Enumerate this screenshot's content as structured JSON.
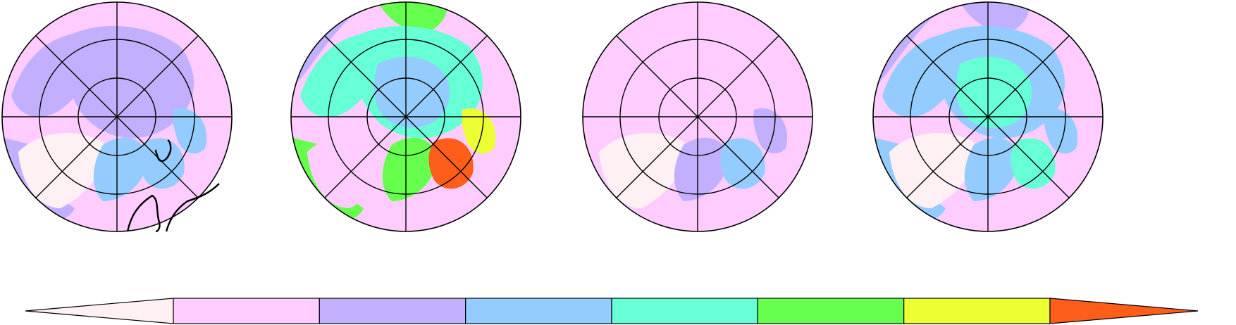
{
  "figure": {
    "panels": [
      {
        "index": 1,
        "levels": {
          "polar_cap": 1,
          "arctic_ocean": 1,
          "atlantic": 0,
          "pacific": 0,
          "greenland": -1,
          "greenland_sea": 2,
          "barents": 2,
          "kara": 2,
          "siberia": 0,
          "alaska": 0,
          "canada": 1,
          "hudson": 1
        }
      },
      {
        "index": 2,
        "levels": {
          "polar_cap": 2,
          "arctic_ocean": 3,
          "atlantic": 1,
          "pacific": 0,
          "greenland": 0,
          "greenland_sea": 4,
          "barents": 6,
          "kara": 5,
          "siberia": 1,
          "alaska": 4,
          "canada": 3,
          "hudson": 4
        }
      },
      {
        "index": 3,
        "levels": {
          "polar_cap": 0,
          "arctic_ocean": 0,
          "atlantic": 0,
          "pacific": 0,
          "greenland": -1,
          "greenland_sea": 1,
          "barents": 2,
          "kara": 1,
          "siberia": 0,
          "alaska": 0,
          "canada": 0,
          "hudson": 0
        }
      },
      {
        "index": 4,
        "levels": {
          "polar_cap": 3,
          "arctic_ocean": 2,
          "atlantic": 1,
          "pacific": 0,
          "greenland": -1,
          "greenland_sea": 2,
          "barents": 3,
          "kara": 2,
          "siberia": 1,
          "alaska": 1,
          "canada": 2,
          "hudson": 2
        }
      }
    ]
  },
  "colorbar": {
    "colors": [
      "#fff0f4",
      "#ffccff",
      "#c2b0ff",
      "#94ccff",
      "#66ffd6",
      "#66ff4d",
      "#ebff33",
      "#ff5e1a"
    ],
    "extend": "both",
    "tick_labels": []
  },
  "colors": {
    "land_outline": "#000000",
    "graticule": "#000000",
    "background": "#ffffff"
  }
}
